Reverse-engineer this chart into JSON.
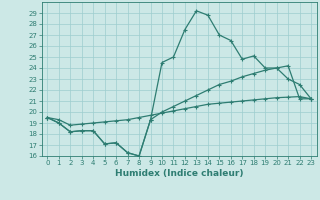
{
  "title": "",
  "xlabel": "Humidex (Indice chaleur)",
  "x_values": [
    0,
    1,
    2,
    3,
    4,
    5,
    6,
    7,
    8,
    9,
    10,
    11,
    12,
    13,
    14,
    15,
    16,
    17,
    18,
    19,
    20,
    21,
    22,
    23
  ],
  "line1_y": [
    19.5,
    19.0,
    18.2,
    18.3,
    18.3,
    17.1,
    17.2,
    16.3,
    16.0,
    19.3,
    24.5,
    25.0,
    27.5,
    29.2,
    28.8,
    27.0,
    26.5,
    24.8,
    25.1,
    24.0,
    24.0,
    23.0,
    22.5,
    21.2
  ],
  "line2_y": [
    19.5,
    19.0,
    18.2,
    18.3,
    18.3,
    17.1,
    17.2,
    16.3,
    16.0,
    19.3,
    20.0,
    20.5,
    21.0,
    21.5,
    22.0,
    22.5,
    22.8,
    23.2,
    23.5,
    23.8,
    24.0,
    24.2,
    21.2,
    21.2
  ],
  "line3_y": [
    19.5,
    19.3,
    18.8,
    18.9,
    19.0,
    19.1,
    19.2,
    19.3,
    19.5,
    19.7,
    19.9,
    20.1,
    20.3,
    20.5,
    20.7,
    20.8,
    20.9,
    21.0,
    21.1,
    21.2,
    21.3,
    21.35,
    21.4,
    21.2
  ],
  "line_color": "#2e7d72",
  "bg_color": "#cce8e6",
  "grid_color": "#9ecece",
  "ylim_min": 16,
  "ylim_max": 30,
  "yticks": [
    16,
    17,
    18,
    19,
    20,
    21,
    22,
    23,
    24,
    25,
    26,
    27,
    28,
    29
  ],
  "xticks": [
    0,
    1,
    2,
    3,
    4,
    5,
    6,
    7,
    8,
    9,
    10,
    11,
    12,
    13,
    14,
    15,
    16,
    17,
    18,
    19,
    20,
    21,
    22,
    23
  ],
  "xlabel_fontsize": 6.5,
  "tick_fontsize": 5.0,
  "linewidth": 0.9,
  "markersize": 3.5
}
